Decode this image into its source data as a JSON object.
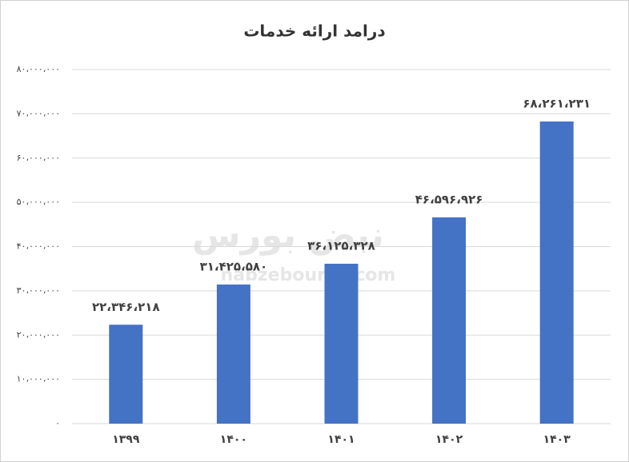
{
  "chart_data": {
    "type": "bar",
    "title": "درامد ارائه خدمات",
    "categories": [
      "۱۳۹۹",
      "۱۴۰۰",
      "۱۴۰۱",
      "۱۴۰۲",
      "۱۴۰۳"
    ],
    "values": [
      22346218,
      31425580,
      36125328,
      46596926,
      68261231
    ],
    "value_labels": [
      "۲۲،۳۴۶،۲۱۸",
      "۳۱،۴۲۵،۵۸۰",
      "۳۶،۱۲۵،۳۲۸",
      "۴۶،۵۹۶،۹۲۶",
      "۶۸،۲۶۱،۲۳۱"
    ],
    "color": "#4472c4",
    "ylim": [
      0,
      80000000
    ],
    "yticks": [
      {
        "value": 0,
        "label": "۰"
      },
      {
        "value": 10000000,
        "label": "۱۰،۰۰۰،۰۰۰"
      },
      {
        "value": 20000000,
        "label": "۲۰،۰۰۰،۰۰۰"
      },
      {
        "value": 30000000,
        "label": "۳۰،۰۰۰،۰۰۰"
      },
      {
        "value": 40000000,
        "label": "۴۰،۰۰۰،۰۰۰"
      },
      {
        "value": 50000000,
        "label": "۵۰،۰۰۰،۰۰۰"
      },
      {
        "value": 60000000,
        "label": "۶۰،۰۰۰،۰۰۰"
      },
      {
        "value": 70000000,
        "label": "۷۰،۰۰۰،۰۰۰"
      },
      {
        "value": 80000000,
        "label": "۸۰،۰۰۰،۰۰۰"
      }
    ],
    "grid": true,
    "watermark": [
      "نبض بورس",
      "nabzebourse.com"
    ]
  }
}
